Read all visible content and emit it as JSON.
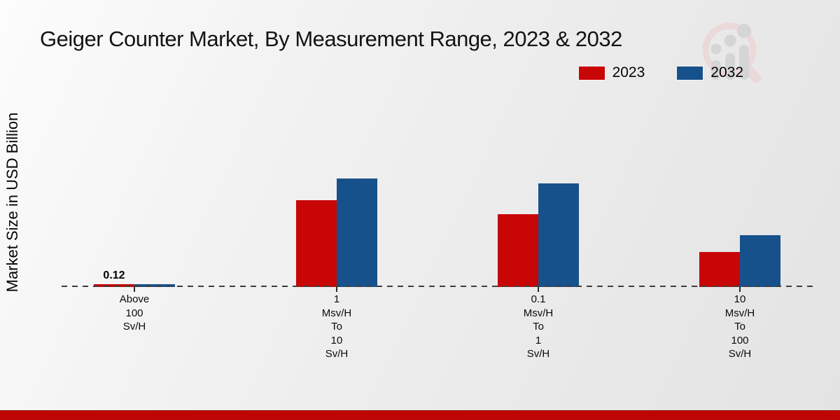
{
  "title": "Geiger Counter Market, By Measurement Range, 2023 & 2032",
  "y_axis_label": "Market Size in USD Billion",
  "footer": {
    "bar_color": "#bd0503"
  },
  "watermark_icon": "magnifier-growth-chart-logo",
  "chart_data": {
    "type": "bar",
    "title": "Geiger Counter Market, By Measurement Range, 2023 & 2032",
    "xlabel": "",
    "ylabel": "Market Size in USD Billion",
    "categories": [
      "Above 100 Sv/H",
      "1 Msv/H To 10 Sv/H",
      "0.1 Msv/H To 1 Sv/H",
      "10 Msv/H To 100 Sv/H"
    ],
    "series": [
      {
        "name": "2023",
        "color": "#c90606",
        "values": [
          0.12,
          3.7,
          3.1,
          1.5
        ]
      },
      {
        "name": "2032",
        "color": "#17518b",
        "values": [
          0.13,
          4.6,
          4.4,
          2.2
        ]
      }
    ],
    "annotations": [
      {
        "text": "0.12",
        "series": "2023",
        "category_index": 0
      }
    ],
    "ylim": [
      0,
      5
    ],
    "grid": false,
    "y_axis_ticks_visible": false,
    "baseline_style": "dashed",
    "legend_position": "top-right"
  }
}
